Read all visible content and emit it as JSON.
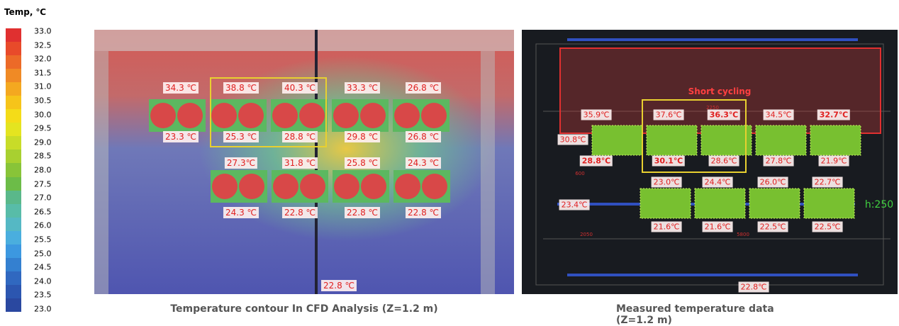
{
  "legend": {
    "title": "Temp, ℃",
    "ticks": [
      "33.0",
      "32.5",
      "32.0",
      "31.5",
      "31.0",
      "30.5",
      "30.0",
      "29.5",
      "29.0",
      "28.5",
      "28.0",
      "27.5",
      "27.0",
      "26.5",
      "26.0",
      "25.5",
      "25.0",
      "24.5",
      "24.0",
      "23.5",
      "23.0"
    ]
  },
  "cfd": {
    "caption": "Temperature contour In CFD Analysis (Z=1.2 m)",
    "labels": [
      "34.3 ℃",
      "38.8 ℃",
      "40.3 ℃",
      "33.3 ℃",
      "26.8 ℃",
      "23.3 ℃",
      "25.3 ℃",
      "28.8 ℃",
      "29.8 ℃",
      "26.8 ℃",
      "27.3℃",
      "31.8 ℃",
      "25.8 ℃",
      "24.3 ℃",
      "24.3 ℃",
      "22.8 ℃",
      "22.8 ℃",
      "22.8 ℃",
      "22.8 ℃"
    ]
  },
  "measured": {
    "caption": "Measured temperature data (Z=1.2 m)",
    "labels": [
      "35.9℃",
      "37.6℃",
      "36.3℃",
      "34.5℃",
      "32.7℃",
      "30.8℃",
      "28.8℃",
      "30.1℃",
      "28.6℃",
      "27.8℃",
      "21.9℃",
      "23.0℃",
      "24.4℃",
      "26.0℃",
      "22.7℃",
      "23.4℃",
      "21.6℃",
      "21.6℃",
      "22.5℃",
      "22.5℃",
      "22.8℃"
    ],
    "annotation": "Short cycling",
    "height_note": "h:250",
    "dimensions": [
      "2250",
      "600",
      "2050",
      "5800"
    ]
  }
}
